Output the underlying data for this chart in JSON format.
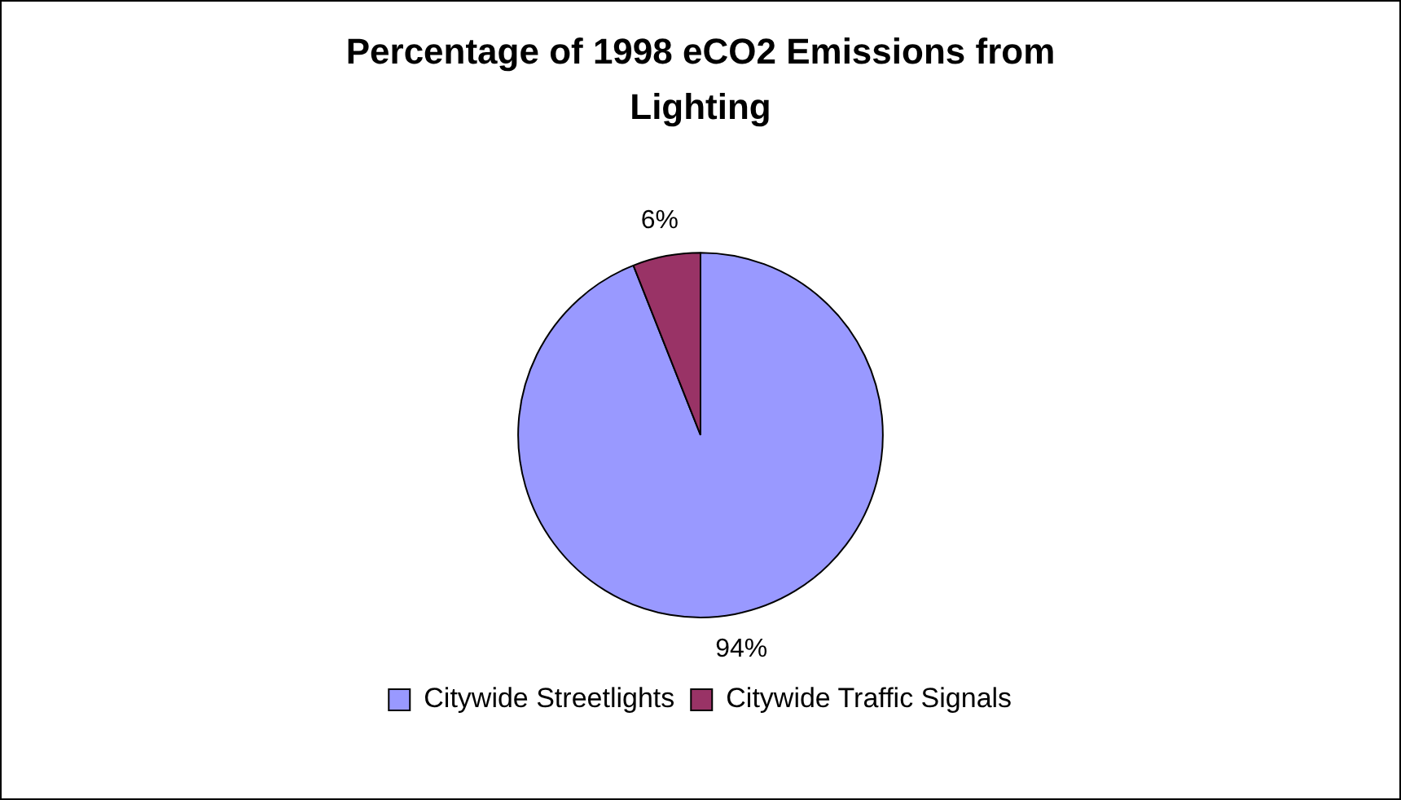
{
  "chart_data": {
    "type": "pie",
    "title": "Percentage of 1998 eCO2 Emissions from Lighting",
    "categories": [
      "Citywide Streetlights",
      "Citywide Traffic Signals"
    ],
    "values": [
      94,
      6
    ],
    "value_labels": [
      "94%",
      "6%"
    ],
    "colors": [
      "#9999ff",
      "#993366"
    ],
    "legend": "bottom"
  }
}
